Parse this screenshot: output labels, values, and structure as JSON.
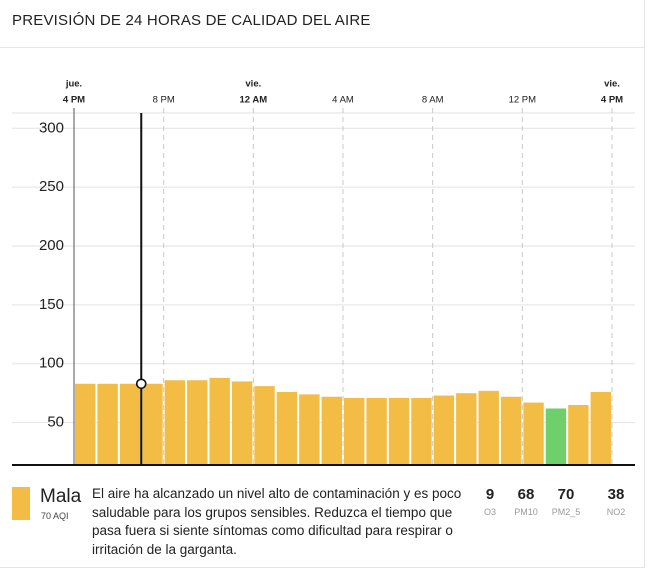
{
  "header": {
    "title": "PREVISIÓN DE 24 HORAS DE CALIDAD DEL AIRE"
  },
  "chart_data": {
    "type": "bar",
    "x": [
      0,
      1,
      2,
      3,
      4,
      5,
      6,
      7,
      8,
      9,
      10,
      11,
      12,
      13,
      14,
      15,
      16,
      17,
      18,
      19,
      20,
      21,
      22,
      23
    ],
    "values": [
      83,
      83,
      83,
      83,
      86,
      86,
      88,
      85,
      81,
      76,
      74,
      72,
      71,
      71,
      71,
      71,
      73,
      75,
      77,
      72,
      67,
      62,
      65,
      76
    ],
    "colors": [
      "#f3bd45",
      "#f3bd45",
      "#f3bd45",
      "#f3bd45",
      "#f3bd45",
      "#f3bd45",
      "#f3bd45",
      "#f3bd45",
      "#f3bd45",
      "#f3bd45",
      "#f3bd45",
      "#f3bd45",
      "#f3bd45",
      "#f3bd45",
      "#f3bd45",
      "#f3bd45",
      "#f3bd45",
      "#f3bd45",
      "#f3bd45",
      "#f3bd45",
      "#f3bd45",
      "#6fcf6a",
      "#f3bd45",
      "#f3bd45"
    ],
    "xlim": [
      0,
      24
    ],
    "xticks": [
      {
        "value": 0,
        "label": "4 PM",
        "day": "jue."
      },
      {
        "value": 4,
        "label": "8 PM"
      },
      {
        "value": 8,
        "label": "12 AM",
        "day": "vie."
      },
      {
        "value": 12,
        "label": "4 AM"
      },
      {
        "value": 16,
        "label": "8 AM"
      },
      {
        "value": 20,
        "label": "12 PM"
      },
      {
        "value": 24,
        "label": "4 PM",
        "day": "vie."
      }
    ],
    "ylim": [
      14,
      313
    ],
    "yticks": [
      50,
      100,
      150,
      200,
      250,
      300
    ],
    "grid": true,
    "selected": 3
  },
  "summary": {
    "category": "Mala",
    "aqi_label": "70 AQI",
    "color": "#f3bd45",
    "description": "El aire ha alcanzado un nivel alto de contaminación y es poco saludable para los grupos sensibles. Reduzca el tiempo que pasa fuera si siente síntomas como dificultad para respirar o irritación de la garganta.",
    "pollutants": [
      {
        "value": 9,
        "name": "O3"
      },
      {
        "value": 68,
        "name": "PM10"
      },
      {
        "value": 70,
        "name": "PM2_5"
      },
      {
        "value": 38,
        "name": "NO2"
      }
    ]
  }
}
